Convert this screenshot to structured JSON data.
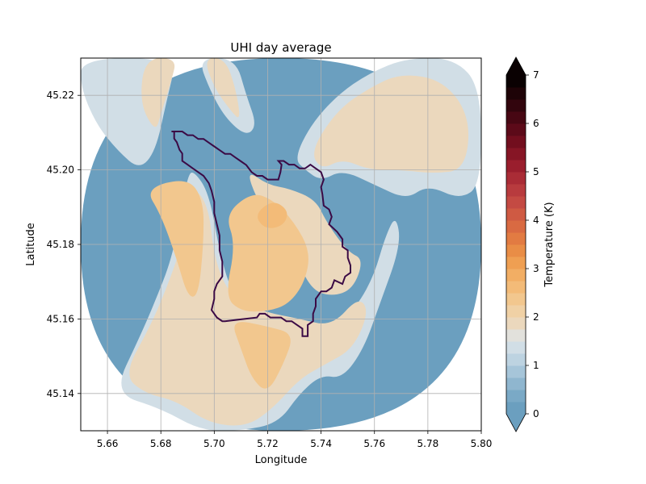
{
  "chart_data": {
    "type": "heatmap",
    "title": "UHI day average",
    "xlabel": "Longitude",
    "ylabel": "Latitude",
    "xlim": [
      5.65,
      5.8
    ],
    "ylim": [
      45.13,
      45.23
    ],
    "x_ticks": [
      5.66,
      5.68,
      5.7,
      5.72,
      5.74,
      5.76,
      5.78,
      5.8
    ],
    "x_tick_labels": [
      "5.66",
      "5.68",
      "5.70",
      "5.72",
      "5.74",
      "5.76",
      "5.78",
      "5.80"
    ],
    "y_ticks": [
      45.14,
      45.16,
      45.18,
      45.2,
      45.22
    ],
    "y_tick_labels": [
      "45.14",
      "45.16",
      "45.18",
      "45.20",
      "45.22"
    ],
    "grid": true,
    "colorbar": {
      "label": "Temperature (K)",
      "min": 0,
      "max": 7,
      "levels": 28,
      "ticks": [
        0,
        1,
        2,
        3,
        4,
        5,
        6,
        7
      ],
      "tick_labels": [
        "0",
        "1",
        "2",
        "3",
        "4",
        "5",
        "6",
        "7"
      ],
      "extend": "both",
      "colors": [
        "#6b9fbf",
        "#7aa9c6",
        "#8fb6cf",
        "#a6c5d9",
        "#bdd3e1",
        "#d1dee6",
        "#e2e1dc",
        "#ebd8bd",
        "#f0d1a5",
        "#f2c78e",
        "#f3bb78",
        "#f2ae64",
        "#ef9f52",
        "#e98d46",
        "#e27b42",
        "#d96a42",
        "#cf5a43",
        "#c44a43",
        "#b83b3e",
        "#aa2c36",
        "#9a1e2d",
        "#861525",
        "#720e1e",
        "#5c0a19",
        "#470713",
        "#32050d",
        "#1e0307",
        "#0a0102"
      ],
      "under_color": "#6b9fbf",
      "over_color": "#0a0102"
    },
    "boundary": [
      [
        5.684,
        45.2103
      ],
      [
        5.688,
        45.2103
      ],
      [
        5.69,
        45.2093
      ],
      [
        5.692,
        45.2093
      ],
      [
        5.694,
        45.2083
      ],
      [
        5.696,
        45.2083
      ],
      [
        5.698,
        45.2073
      ],
      [
        5.7,
        45.2063
      ],
      [
        5.702,
        45.2053
      ],
      [
        5.704,
        45.2043
      ],
      [
        5.706,
        45.2043
      ],
      [
        5.708,
        45.2033
      ],
      [
        5.71,
        45.2023
      ],
      [
        5.712,
        45.2013
      ],
      [
        5.714,
        45.1994
      ],
      [
        5.716,
        45.1984
      ],
      [
        5.718,
        45.1984
      ],
      [
        5.72,
        45.1974
      ],
      [
        5.722,
        45.1974
      ],
      [
        5.724,
        45.1974
      ],
      [
        5.7248,
        45.1994
      ],
      [
        5.7252,
        45.2014
      ],
      [
        5.724,
        45.2024
      ],
      [
        5.726,
        45.2024
      ],
      [
        5.728,
        45.2014
      ],
      [
        5.73,
        45.2014
      ],
      [
        5.732,
        45.2004
      ],
      [
        5.734,
        45.2004
      ],
      [
        5.736,
        45.2014
      ],
      [
        5.738,
        45.2004
      ],
      [
        5.74,
        45.1994
      ],
      [
        5.741,
        45.1974
      ],
      [
        5.74,
        45.1954
      ],
      [
        5.7405,
        45.1934
      ],
      [
        5.741,
        45.1904
      ],
      [
        5.743,
        45.1894
      ],
      [
        5.744,
        45.1874
      ],
      [
        5.743,
        45.1854
      ],
      [
        5.746,
        45.1834
      ],
      [
        5.748,
        45.1814
      ],
      [
        5.748,
        45.1794
      ],
      [
        5.75,
        45.1784
      ],
      [
        5.75,
        45.1764
      ],
      [
        5.751,
        45.1744
      ],
      [
        5.751,
        45.1724
      ],
      [
        5.749,
        45.1714
      ],
      [
        5.748,
        45.1694
      ],
      [
        5.745,
        45.1704
      ],
      [
        5.744,
        45.1684
      ],
      [
        5.742,
        45.1674
      ],
      [
        5.74,
        45.1674
      ],
      [
        5.738,
        45.1654
      ],
      [
        5.738,
        45.1634
      ],
      [
        5.737,
        45.1614
      ],
      [
        5.737,
        45.1594
      ],
      [
        5.735,
        45.1584
      ],
      [
        5.735,
        45.1554
      ],
      [
        5.733,
        45.1554
      ],
      [
        5.733,
        45.1574
      ],
      [
        5.731,
        45.1584
      ],
      [
        5.729,
        45.1594
      ],
      [
        5.727,
        45.1594
      ],
      [
        5.725,
        45.1604
      ],
      [
        5.723,
        45.1604
      ],
      [
        5.721,
        45.1604
      ],
      [
        5.719,
        45.1614
      ],
      [
        5.717,
        45.1614
      ],
      [
        5.716,
        45.1604
      ],
      [
        5.71,
        45.1599
      ],
      [
        5.704,
        45.1594
      ],
      [
        5.703,
        45.1594
      ],
      [
        5.701,
        45.1604
      ],
      [
        5.7,
        45.1614
      ],
      [
        5.699,
        45.1624
      ],
      [
        5.7,
        45.1654
      ],
      [
        5.7,
        45.1674
      ],
      [
        5.701,
        45.1694
      ],
      [
        5.703,
        45.1714
      ],
      [
        5.703,
        45.1754
      ],
      [
        5.702,
        45.1784
      ],
      [
        5.702,
        45.1824
      ],
      [
        5.701,
        45.1854
      ],
      [
        5.7,
        45.1884
      ],
      [
        5.7,
        45.1914
      ],
      [
        5.699,
        45.1944
      ],
      [
        5.698,
        45.1964
      ],
      [
        5.696,
        45.1984
      ],
      [
        5.694,
        45.1994
      ],
      [
        5.692,
        45.2004
      ],
      [
        5.69,
        45.2014
      ],
      [
        5.688,
        45.2024
      ],
      [
        5.688,
        45.2044
      ],
      [
        5.687,
        45.2054
      ],
      [
        5.686,
        45.2074
      ],
      [
        5.685,
        45.2084
      ],
      [
        5.685,
        45.2103
      ],
      [
        5.684,
        45.2103
      ]
    ],
    "boundary_color": "#3b0a45",
    "regions": [
      {
        "level": 0.2,
        "pts": [
          [
            5.65,
            45.13
          ],
          [
            5.8,
            45.13
          ],
          [
            5.8,
            45.23
          ],
          [
            5.65,
            45.23
          ]
        ]
      },
      {
        "level": 1.3,
        "pts": [
          [
            5.662,
            45.14
          ],
          [
            5.672,
            45.155
          ],
          [
            5.678,
            45.165
          ],
          [
            5.684,
            45.176
          ],
          [
            5.688,
            45.19
          ],
          [
            5.69,
            45.198
          ],
          [
            5.692,
            45.2
          ],
          [
            5.698,
            45.194
          ],
          [
            5.702,
            45.178
          ],
          [
            5.706,
            45.168
          ],
          [
            5.712,
            45.162
          ],
          [
            5.728,
            45.158
          ],
          [
            5.744,
            45.156
          ],
          [
            5.754,
            45.164
          ],
          [
            5.76,
            45.172
          ],
          [
            5.764,
            45.182
          ],
          [
            5.768,
            45.188
          ],
          [
            5.77,
            45.18
          ],
          [
            5.762,
            45.164
          ],
          [
            5.756,
            45.152
          ],
          [
            5.748,
            45.144
          ],
          [
            5.74,
            45.145
          ],
          [
            5.732,
            45.14
          ],
          [
            5.724,
            45.132
          ],
          [
            5.71,
            45.13
          ],
          [
            5.695,
            45.13
          ],
          [
            5.68,
            45.136
          ]
        ]
      },
      {
        "level": 1.3,
        "pts": [
          [
            5.73,
            45.203
          ],
          [
            5.736,
            45.212
          ],
          [
            5.746,
            45.22
          ],
          [
            5.758,
            45.226
          ],
          [
            5.772,
            45.23
          ],
          [
            5.79,
            45.23
          ],
          [
            5.8,
            45.222
          ],
          [
            5.8,
            45.196
          ],
          [
            5.792,
            45.192
          ],
          [
            5.78,
            45.196
          ],
          [
            5.772,
            45.192
          ],
          [
            5.76,
            45.196
          ],
          [
            5.748,
            45.2
          ],
          [
            5.74,
            45.197
          ],
          [
            5.734,
            45.2
          ]
        ]
      },
      {
        "level": 1.3,
        "pts": [
          [
            5.65,
            45.222
          ],
          [
            5.656,
            45.212
          ],
          [
            5.664,
            45.205
          ],
          [
            5.672,
            45.2
          ],
          [
            5.678,
            45.205
          ],
          [
            5.682,
            45.218
          ],
          [
            5.686,
            45.23
          ],
          [
            5.65,
            45.23
          ]
        ]
      },
      {
        "level": 1.3,
        "pts": [
          [
            5.694,
            45.23
          ],
          [
            5.698,
            45.222
          ],
          [
            5.704,
            45.214
          ],
          [
            5.712,
            45.209
          ],
          [
            5.716,
            45.212
          ],
          [
            5.712,
            45.22
          ],
          [
            5.708,
            45.23
          ]
        ]
      },
      {
        "level": 1.9,
        "pts": [
          [
            5.696,
            45.23
          ],
          [
            5.7,
            45.222
          ],
          [
            5.706,
            45.216
          ],
          [
            5.71,
            45.213
          ],
          [
            5.708,
            45.222
          ],
          [
            5.704,
            45.23
          ]
        ]
      },
      {
        "level": 1.9,
        "pts": [
          [
            5.672,
            45.218
          ],
          [
            5.678,
            45.21
          ],
          [
            5.68,
            45.215
          ],
          [
            5.684,
            45.224
          ],
          [
            5.686,
            45.23
          ],
          [
            5.674,
            45.23
          ]
        ]
      },
      {
        "level": 1.8,
        "pts": [
          [
            5.736,
            45.205
          ],
          [
            5.746,
            45.216
          ],
          [
            5.758,
            45.222
          ],
          [
            5.77,
            45.226
          ],
          [
            5.786,
            45.224
          ],
          [
            5.796,
            45.214
          ],
          [
            5.794,
            45.2
          ],
          [
            5.782,
            45.199
          ],
          [
            5.77,
            45.2
          ],
          [
            5.758,
            45.2
          ],
          [
            5.748,
            45.203
          ],
          [
            5.74,
            45.2
          ]
        ]
      },
      {
        "level": 1.9,
        "pts": [
          [
            5.666,
            45.145
          ],
          [
            5.676,
            45.158
          ],
          [
            5.682,
            45.168
          ],
          [
            5.688,
            45.18
          ],
          [
            5.692,
            45.196
          ],
          [
            5.698,
            45.19
          ],
          [
            5.7,
            45.176
          ],
          [
            5.706,
            45.166
          ],
          [
            5.718,
            45.162
          ],
          [
            5.732,
            45.16
          ],
          [
            5.744,
            45.158
          ],
          [
            5.754,
            45.166
          ],
          [
            5.758,
            45.162
          ],
          [
            5.752,
            45.152
          ],
          [
            5.742,
            45.148
          ],
          [
            5.732,
            45.144
          ],
          [
            5.722,
            45.136
          ],
          [
            5.712,
            45.131
          ],
          [
            5.698,
            45.132
          ],
          [
            5.686,
            45.138
          ],
          [
            5.674,
            45.14
          ]
        ]
      },
      {
        "level": 1.9,
        "pts": [
          [
            5.712,
            45.2
          ],
          [
            5.72,
            45.196
          ],
          [
            5.728,
            45.195
          ],
          [
            5.738,
            45.192
          ],
          [
            5.742,
            45.186
          ],
          [
            5.75,
            45.178
          ],
          [
            5.756,
            45.176
          ],
          [
            5.752,
            45.168
          ],
          [
            5.744,
            45.166
          ],
          [
            5.736,
            45.168
          ],
          [
            5.73,
            45.178
          ],
          [
            5.722,
            45.186
          ],
          [
            5.716,
            45.192
          ]
        ]
      },
      {
        "level": 2.3,
        "pts": [
          [
            5.674,
            45.195
          ],
          [
            5.68,
            45.188
          ],
          [
            5.686,
            45.176
          ],
          [
            5.69,
            45.166
          ],
          [
            5.694,
            45.166
          ],
          [
            5.696,
            45.18
          ],
          [
            5.696,
            45.192
          ],
          [
            5.69,
            45.198
          ]
        ]
      },
      {
        "level": 2.3,
        "pts": [
          [
            5.704,
            45.188
          ],
          [
            5.708,
            45.18
          ],
          [
            5.704,
            45.166
          ],
          [
            5.71,
            45.162
          ],
          [
            5.72,
            45.162
          ],
          [
            5.728,
            45.164
          ],
          [
            5.734,
            45.17
          ],
          [
            5.736,
            45.178
          ],
          [
            5.73,
            45.186
          ],
          [
            5.722,
            45.192
          ],
          [
            5.714,
            45.194
          ]
        ]
      },
      {
        "level": 2.3,
        "pts": [
          [
            5.706,
            45.16
          ],
          [
            5.71,
            45.152
          ],
          [
            5.714,
            45.144
          ],
          [
            5.72,
            45.14
          ],
          [
            5.726,
            45.148
          ],
          [
            5.73,
            45.156
          ],
          [
            5.72,
            45.158
          ]
        ]
      },
      {
        "level": 2.7,
        "pts": [
          [
            5.715,
            45.188
          ],
          [
            5.719,
            45.184
          ],
          [
            5.726,
            45.185
          ],
          [
            5.728,
            45.189
          ],
          [
            5.722,
            45.192
          ]
        ]
      }
    ]
  }
}
